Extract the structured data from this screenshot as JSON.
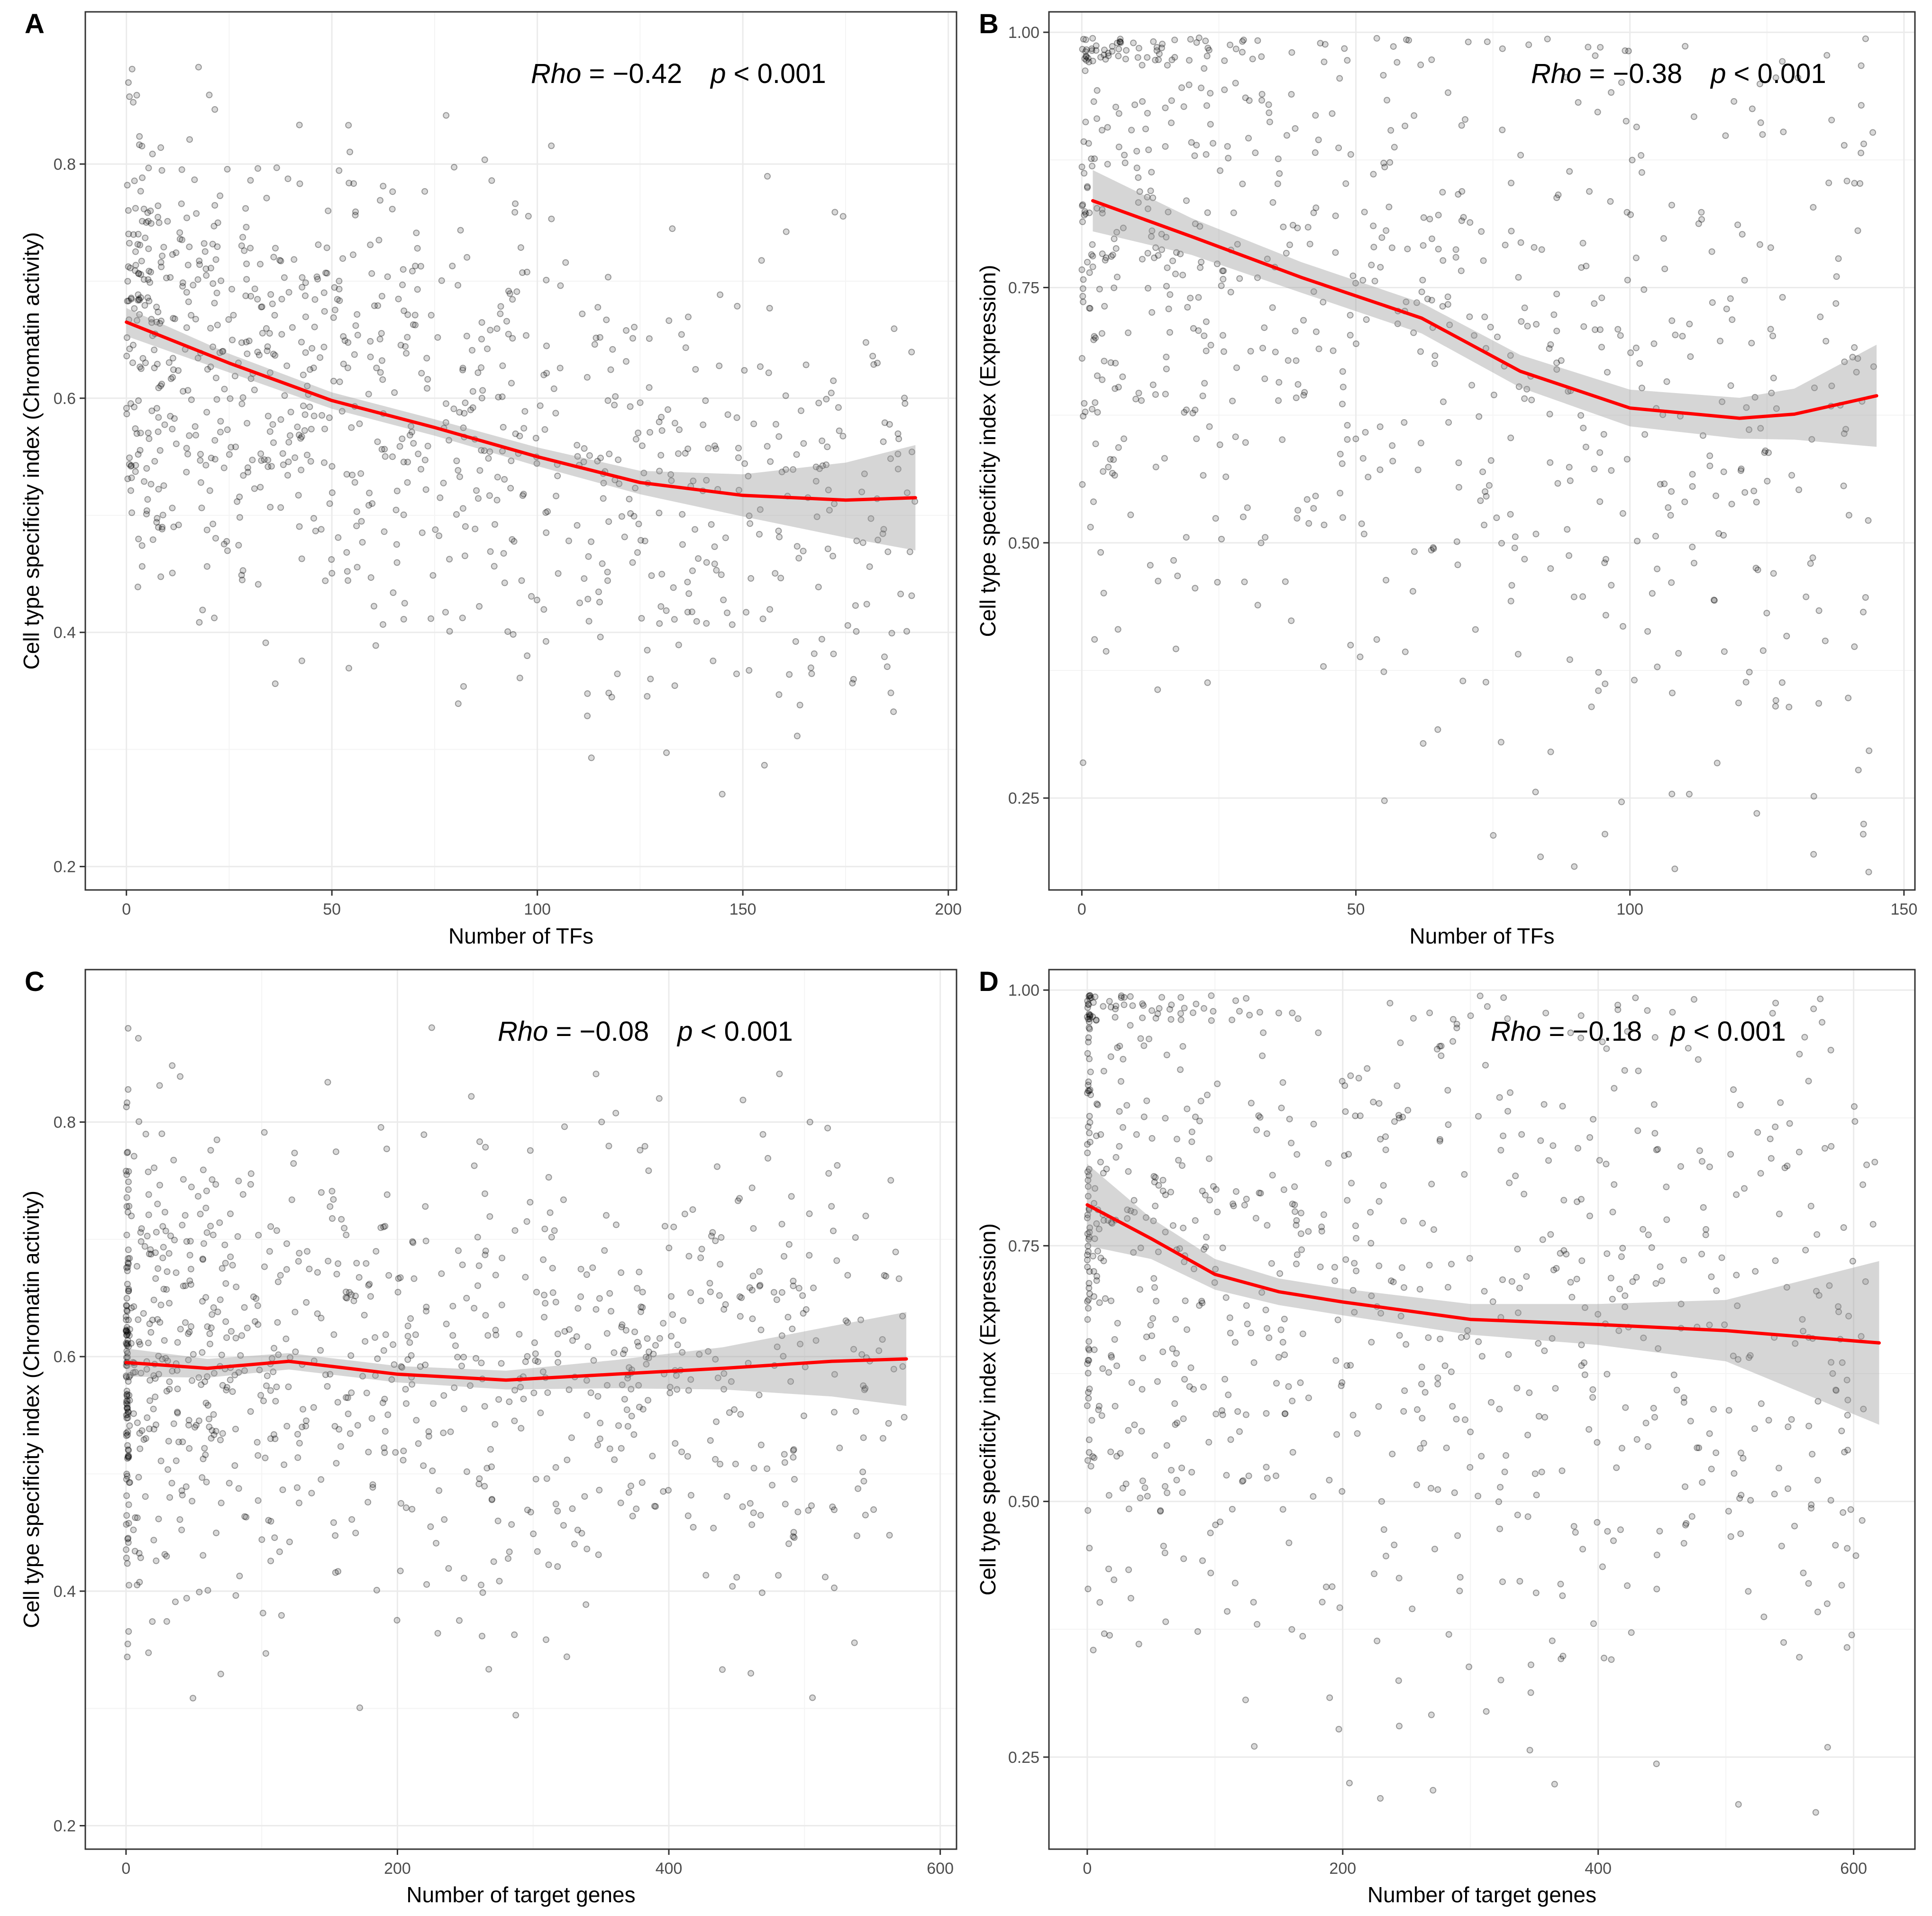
{
  "chart_data": [
    {
      "type": "scatter",
      "panel": "A",
      "xlabel": "Number of TFs",
      "ylabel": "Cell type specificity index (Chromatin activity)",
      "annotation": {
        "rho_label": "Rho",
        "rho_value": " = −0.42",
        "p_label": "p",
        "p_value": " < 0.001"
      },
      "xlim": [
        -10,
        202
      ],
      "ylim": [
        0.18,
        0.93
      ],
      "x_ticks": [
        0,
        50,
        100,
        150,
        200
      ],
      "x_tick_labels": [
        "0",
        "50",
        "100",
        "150",
        "200"
      ],
      "y_ticks": [
        0.2,
        0.4,
        0.6,
        0.8
      ],
      "y_tick_labels": [
        "0.2",
        "0.4",
        "0.6",
        "0.8"
      ],
      "x_range": [
        0,
        192
      ],
      "point_y_mean": 0.6,
      "point_y_sd": 0.1,
      "n_points": 950,
      "smooth": {
        "x": [
          0,
          25,
          50,
          75,
          100,
          125,
          150,
          175,
          192
        ],
        "y": [
          0.665,
          0.63,
          0.598,
          0.575,
          0.55,
          0.528,
          0.517,
          0.513,
          0.515
        ],
        "ci_halfwidth": [
          0.012,
          0.008,
          0.007,
          0.007,
          0.008,
          0.01,
          0.018,
          0.032,
          0.045
        ]
      }
    },
    {
      "type": "scatter",
      "panel": "B",
      "xlabel": "Number of TFs",
      "ylabel": "Cell type specificity index (Expression)",
      "annotation": {
        "rho_label": "Rho",
        "rho_value": " = −0.38",
        "p_label": "p",
        "p_value": " < 0.001"
      },
      "xlim": [
        -6,
        152
      ],
      "ylim": [
        0.16,
        1.02
      ],
      "x_ticks": [
        0,
        50,
        100,
        150
      ],
      "x_tick_labels": [
        "0",
        "50",
        "100",
        "150"
      ],
      "y_ticks": [
        0.25,
        0.5,
        0.75,
        1.0
      ],
      "y_tick_labels": [
        "0.25",
        "0.50",
        "0.75",
        "1.00"
      ],
      "x_range": [
        0,
        145
      ],
      "point_y_mean": 0.7,
      "point_y_sd": 0.2,
      "n_points": 800,
      "smooth": {
        "x": [
          2,
          20,
          40,
          62,
          80,
          100,
          120,
          130,
          145
        ],
        "y": [
          0.835,
          0.8,
          0.76,
          0.72,
          0.668,
          0.632,
          0.622,
          0.626,
          0.644
        ],
        "ci_halfwidth": [
          0.03,
          0.018,
          0.015,
          0.015,
          0.016,
          0.018,
          0.02,
          0.025,
          0.05
        ]
      }
    },
    {
      "type": "scatter",
      "panel": "C",
      "xlabel": "Number of target genes",
      "ylabel": "Cell type specificity index (Chromatin activity)",
      "annotation": {
        "rho_label": "Rho",
        "rho_value": " = −0.08",
        "p_label": "p",
        "p_value": " < 0.001"
      },
      "xlim": [
        -30,
        612
      ],
      "ylim": [
        0.18,
        0.93
      ],
      "x_ticks": [
        0,
        200,
        400,
        600
      ],
      "x_tick_labels": [
        "0",
        "200",
        "400",
        "600"
      ],
      "y_ticks": [
        0.2,
        0.4,
        0.6,
        0.8
      ],
      "y_tick_labels": [
        "0.2",
        "0.4",
        "0.6",
        "0.8"
      ],
      "x_range": [
        0,
        575
      ],
      "point_y_mean": 0.58,
      "point_y_sd": 0.1,
      "n_points": 1000,
      "smooth": {
        "x": [
          0,
          60,
          120,
          200,
          280,
          360,
          440,
          520,
          575
        ],
        "y": [
          0.595,
          0.59,
          0.596,
          0.585,
          0.58,
          0.585,
          0.59,
          0.596,
          0.598
        ],
        "ci_halfwidth": [
          0.012,
          0.008,
          0.007,
          0.007,
          0.008,
          0.012,
          0.018,
          0.03,
          0.04
        ]
      }
    },
    {
      "type": "scatter",
      "panel": "D",
      "xlabel": "Number of target genes",
      "ylabel": "Cell type specificity index (Expression)",
      "annotation": {
        "rho_label": "Rho",
        "rho_value": " = −0.18",
        "p_label": "p",
        "p_value": " < 0.001"
      },
      "xlim": [
        -30,
        648
      ],
      "ylim": [
        0.16,
        1.02
      ],
      "x_ticks": [
        0,
        200,
        400,
        600
      ],
      "x_tick_labels": [
        "0",
        "200",
        "400",
        "600"
      ],
      "y_ticks": [
        0.25,
        0.5,
        0.75,
        1.0
      ],
      "y_tick_labels": [
        "0.25",
        "0.50",
        "0.75",
        "1.00"
      ],
      "x_range": [
        0,
        620
      ],
      "point_y_mean": 0.7,
      "point_y_sd": 0.19,
      "n_points": 900,
      "smooth": {
        "x": [
          0,
          50,
          100,
          150,
          200,
          300,
          400,
          500,
          620
        ],
        "y": [
          0.79,
          0.757,
          0.722,
          0.705,
          0.695,
          0.678,
          0.673,
          0.667,
          0.655
        ],
        "ci_halfwidth": [
          0.04,
          0.02,
          0.015,
          0.013,
          0.013,
          0.015,
          0.02,
          0.03,
          0.08
        ]
      }
    }
  ]
}
